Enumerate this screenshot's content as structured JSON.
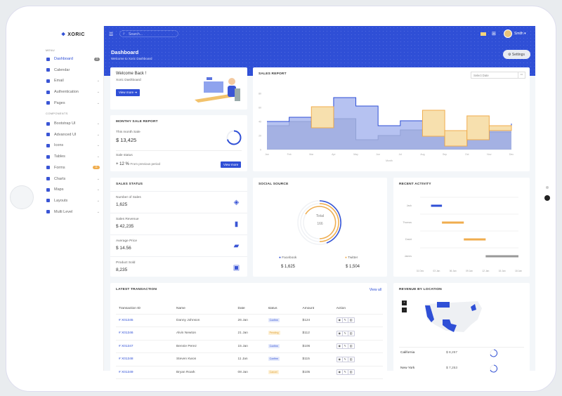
{
  "brand": {
    "name": "XORIC",
    "accent": "#2f4fd6",
    "secondary": "#f0ad4e"
  },
  "sidebar": {
    "menu_label": "MENU",
    "components_label": "COMPONENTS",
    "items": [
      {
        "label": "Dashboard",
        "badge": "3"
      },
      {
        "label": "Calendar"
      },
      {
        "label": "Email"
      },
      {
        "label": "Authentication"
      },
      {
        "label": "Pages"
      }
    ],
    "components": [
      {
        "label": "Bootstrap UI"
      },
      {
        "label": "Advanced UI"
      },
      {
        "label": "Icons"
      },
      {
        "label": "Tables"
      },
      {
        "label": "Forms",
        "badge": "11"
      },
      {
        "label": "Charts"
      },
      {
        "label": "Maps"
      },
      {
        "label": "Layouts"
      },
      {
        "label": "Multi Level"
      }
    ]
  },
  "header": {
    "search_placeholder": "Search...",
    "user": "Smith",
    "title": "Dashboard",
    "subtitle": "Welcome to Xoric Dashboard",
    "settings": "Settings"
  },
  "welcome": {
    "title": "Welcome Back !",
    "subtitle": "Xoric Dashboard",
    "button": "View more"
  },
  "monthly": {
    "title": "MONTHY SALE REPORT",
    "label": "This month Sale",
    "value": "$ 13,425",
    "status_label": "Sale status",
    "change": "+ 12 %",
    "change_note": "From previous period",
    "button": "View more",
    "progress": 0.7
  },
  "sales_report": {
    "title": "SALES REPORT",
    "date_placeholder": "Select Date"
  },
  "chart_data": [
    {
      "type": "line",
      "title": "SALES REPORT",
      "xlabel": "Month",
      "ylabel": "",
      "ylim": [
        0,
        80
      ],
      "yticks": [
        "0",
        "20",
        "40",
        "60",
        "80"
      ],
      "categories": [
        "Jan",
        "Feb",
        "Mar",
        "Apr",
        "May",
        "Jun",
        "Jul",
        "Aug",
        "Sep",
        "Oct",
        "Nov",
        "Dec"
      ],
      "series": [
        {
          "color": "#c8ccd6",
          "values": [
            34,
            40,
            40,
            44,
            14,
            20,
            28,
            28,
            18,
            18,
            25,
            25
          ]
        },
        {
          "color": "#2f4fd6",
          "values": [
            40,
            46,
            31,
            74,
            62,
            34,
            41,
            19,
            5,
            14,
            27,
            37
          ]
        },
        {
          "color": "#f0ad4e",
          "values": [
            null,
            null,
            61,
            null,
            null,
            null,
            null,
            56,
            27,
            48,
            34,
            null
          ]
        }
      ]
    },
    {
      "type": "bar",
      "title": "RECENT ACTIVITY",
      "categories": [
        "Jack",
        "Thomas",
        "David",
        "James"
      ],
      "xticks": [
        "31 Dec",
        "03 Jan",
        "06 Jan",
        "09 Jan",
        "12 Jan",
        "15 Jan",
        "18 Jan"
      ],
      "series": [
        {
          "ranges": [
            [
              2,
              4
            ],
            [
              4,
              8
            ],
            [
              8,
              12
            ],
            [
              12,
              18
            ]
          ],
          "colors": [
            "#2f4fd6",
            "#f0ad4e",
            "#f0ad4e",
            "#999999"
          ]
        }
      ]
    }
  ],
  "sales_status": {
    "title": "SALES STATUS",
    "rows": [
      {
        "label": "Number of Sales",
        "value": "1,625",
        "icon": "layers-icon"
      },
      {
        "label": "Sales Revenue",
        "value": "$ 42,235",
        "icon": "bar-chart-icon"
      },
      {
        "label": "Average Price",
        "value": "$ 14.56",
        "icon": "ticket-icon"
      },
      {
        "label": "Product Sold",
        "value": "8,235",
        "icon": "box-icon"
      }
    ]
  },
  "social": {
    "title": "SOCIAL SOURCE",
    "total_label": "Total",
    "total": "166",
    "facebook": "Facebook",
    "facebook_value": "$ 1,625",
    "twitter": "Twitter",
    "twitter_value": "$ 1,504"
  },
  "activity": {
    "title": "RECENT ACTIVITY"
  },
  "transactions": {
    "title": "LATEST TRANSACTION",
    "view_all": "View all",
    "headers": [
      "Transaction ID",
      "Name",
      "Date",
      "status",
      "Amount",
      "Action"
    ],
    "rows": [
      {
        "id": "# X01345",
        "name": "Danny Johnson",
        "date": "26 Jan",
        "status": "Confirm",
        "amount": "$124"
      },
      {
        "id": "# X01346",
        "name": "Alvin Newton",
        "date": "21 Jan",
        "status": "Pending",
        "amount": "$112"
      },
      {
        "id": "# X01347",
        "name": "Bennie Perez",
        "date": "15 Jan",
        "status": "Confirm",
        "amount": "$106"
      },
      {
        "id": "# X01348",
        "name": "Steven Kwon",
        "date": "11 Jan",
        "status": "Confirm",
        "amount": "$115"
      },
      {
        "id": "# X01349",
        "name": "Bryan Roark",
        "date": "08 Jan",
        "status": "Cancel",
        "amount": "$105"
      }
    ]
  },
  "location": {
    "title": "REVENUE BY LOCATION",
    "zoom_in": "+",
    "zoom_out": "-",
    "rows": [
      {
        "name": "California",
        "value": "$ 8,257"
      },
      {
        "name": "New York",
        "value": "$ 7,253"
      }
    ]
  }
}
